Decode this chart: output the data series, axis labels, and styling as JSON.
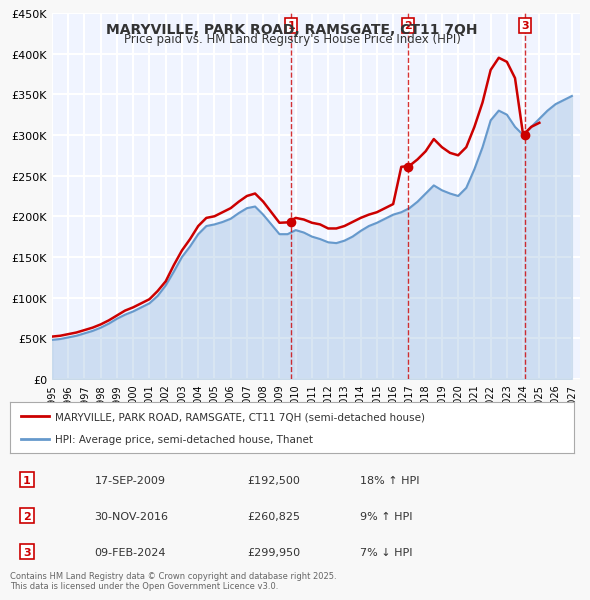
{
  "title": "MARYVILLE, PARK ROAD, RAMSGATE, CT11 7QH",
  "subtitle": "Price paid vs. HM Land Registry's House Price Index (HPI)",
  "xlabel": "",
  "ylabel": "",
  "ylim": [
    0,
    450000
  ],
  "yticks": [
    0,
    50000,
    100000,
    150000,
    200000,
    250000,
    300000,
    350000,
    400000,
    450000
  ],
  "ytick_labels": [
    "£0",
    "£50K",
    "£100K",
    "£150K",
    "£200K",
    "£250K",
    "£300K",
    "£350K",
    "£400K",
    "£450K"
  ],
  "xlim_start": 1995.0,
  "xlim_end": 2027.5,
  "price_color": "#cc0000",
  "hpi_color": "#6699cc",
  "background_color": "#f0f4ff",
  "plot_bg_color": "#f0f4ff",
  "grid_color": "#ffffff",
  "sale_points": [
    {
      "year": 2009.72,
      "price": 192500,
      "label": "1"
    },
    {
      "year": 2016.92,
      "price": 260825,
      "label": "2"
    },
    {
      "year": 2024.1,
      "price": 299950,
      "label": "3"
    }
  ],
  "vline_color": "#cc0000",
  "vline_style": "--",
  "legend_label_price": "MARYVILLE, PARK ROAD, RAMSGATE, CT11 7QH (semi-detached house)",
  "legend_label_hpi": "HPI: Average price, semi-detached house, Thanet",
  "table_rows": [
    {
      "num": "1",
      "date": "17-SEP-2009",
      "price": "£192,500",
      "change": "18% ↑ HPI"
    },
    {
      "num": "2",
      "date": "30-NOV-2016",
      "price": "£260,825",
      "change": "9% ↑ HPI"
    },
    {
      "num": "3",
      "date": "09-FEB-2024",
      "price": "£299,950",
      "change": "7% ↓ HPI"
    }
  ],
  "footer": "Contains HM Land Registry data © Crown copyright and database right 2025.\nThis data is licensed under the Open Government Licence v3.0.",
  "price_line": {
    "years": [
      1995.0,
      1995.5,
      1996.0,
      1996.5,
      1997.0,
      1997.5,
      1998.0,
      1998.5,
      1999.0,
      1999.5,
      2000.0,
      2000.5,
      2001.0,
      2001.5,
      2002.0,
      2002.5,
      2003.0,
      2003.5,
      2004.0,
      2004.5,
      2005.0,
      2005.5,
      2006.0,
      2006.5,
      2007.0,
      2007.5,
      2008.0,
      2008.5,
      2009.0,
      2009.5,
      2010.0,
      2010.5,
      2011.0,
      2011.5,
      2012.0,
      2012.5,
      2013.0,
      2013.5,
      2014.0,
      2014.5,
      2015.0,
      2015.5,
      2016.0,
      2016.5,
      2017.0,
      2017.5,
      2018.0,
      2018.5,
      2019.0,
      2019.5,
      2020.0,
      2020.5,
      2021.0,
      2021.5,
      2022.0,
      2022.5,
      2023.0,
      2023.5,
      2024.0,
      2024.5,
      2025.0
    ],
    "values": [
      52000,
      53000,
      55000,
      57000,
      60000,
      63000,
      67000,
      72000,
      78000,
      84000,
      88000,
      93000,
      98000,
      108000,
      120000,
      140000,
      158000,
      172000,
      188000,
      198000,
      200000,
      205000,
      210000,
      218000,
      225000,
      228000,
      218000,
      205000,
      192000,
      192500,
      198000,
      196000,
      192000,
      190000,
      185000,
      185000,
      188000,
      193000,
      198000,
      202000,
      205000,
      210000,
      215000,
      260825,
      262000,
      270000,
      280000,
      295000,
      285000,
      278000,
      275000,
      285000,
      310000,
      340000,
      380000,
      395000,
      390000,
      370000,
      299950,
      310000,
      315000
    ]
  },
  "hpi_line": {
    "years": [
      1995.0,
      1995.5,
      1996.0,
      1996.5,
      1997.0,
      1997.5,
      1998.0,
      1998.5,
      1999.0,
      1999.5,
      2000.0,
      2000.5,
      2001.0,
      2001.5,
      2002.0,
      2002.5,
      2003.0,
      2003.5,
      2004.0,
      2004.5,
      2005.0,
      2005.5,
      2006.0,
      2006.5,
      2007.0,
      2007.5,
      2008.0,
      2008.5,
      2009.0,
      2009.5,
      2010.0,
      2010.5,
      2011.0,
      2011.5,
      2012.0,
      2012.5,
      2013.0,
      2013.5,
      2014.0,
      2014.5,
      2015.0,
      2015.5,
      2016.0,
      2016.5,
      2017.0,
      2017.5,
      2018.0,
      2018.5,
      2019.0,
      2019.5,
      2020.0,
      2020.5,
      2021.0,
      2021.5,
      2022.0,
      2022.5,
      2023.0,
      2023.5,
      2024.0,
      2024.5,
      2025.0,
      2025.5,
      2026.0,
      2026.5,
      2027.0
    ],
    "values": [
      48000,
      49000,
      51000,
      53000,
      56000,
      59000,
      63000,
      68000,
      74000,
      79000,
      83000,
      88000,
      93000,
      102000,
      115000,
      132000,
      150000,
      163000,
      178000,
      188000,
      190000,
      193000,
      197000,
      204000,
      210000,
      212000,
      202000,
      190000,
      178000,
      178000,
      183000,
      180000,
      175000,
      172000,
      168000,
      167000,
      170000,
      175000,
      182000,
      188000,
      192000,
      197000,
      202000,
      205000,
      210000,
      218000,
      228000,
      238000,
      232000,
      228000,
      225000,
      235000,
      258000,
      285000,
      318000,
      330000,
      325000,
      310000,
      300000,
      310000,
      320000,
      330000,
      338000,
      343000,
      348000
    ]
  }
}
